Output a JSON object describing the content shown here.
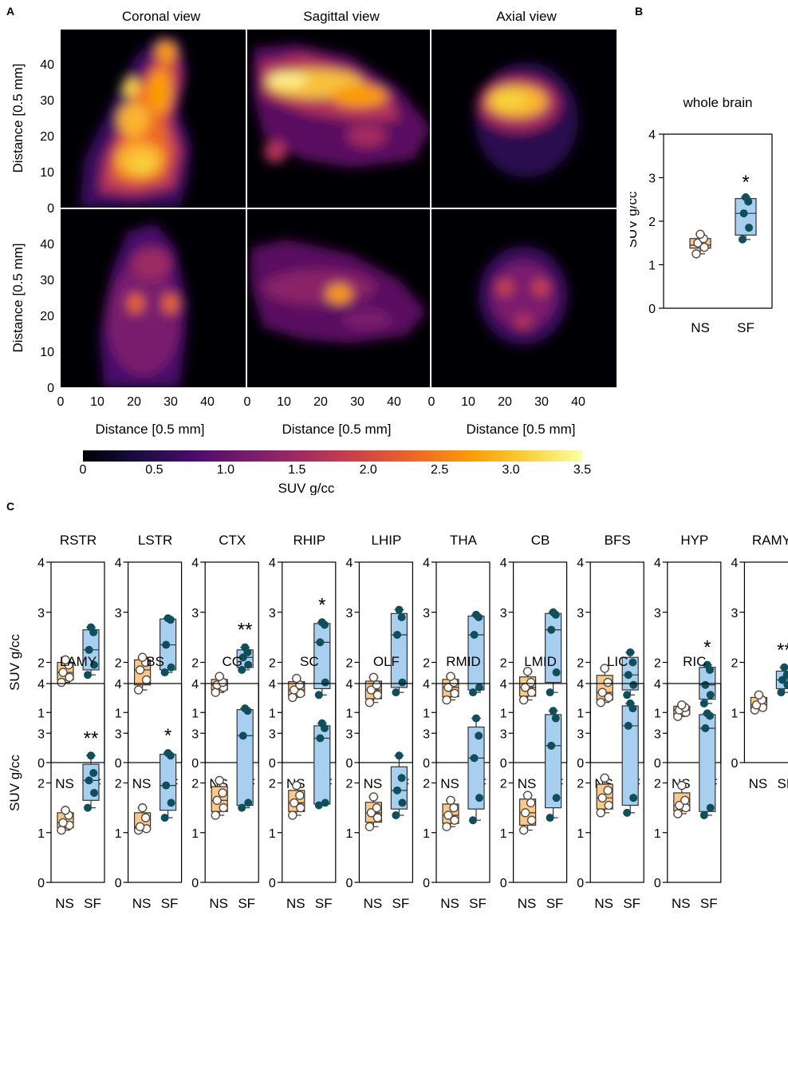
{
  "panel_labels": {
    "a": "A",
    "b": "B",
    "c": "C"
  },
  "petimages": {
    "view_titles": [
      "Coronal view",
      "Sagittal view",
      "Axial view"
    ],
    "ylabel": "Distance [0.5 mm]",
    "xlabel": "Distance [0.5 mm]",
    "yticks": [
      "0",
      "10",
      "20",
      "30",
      "40"
    ],
    "xticks": [
      "0",
      "10",
      "20",
      "30",
      "40"
    ]
  },
  "colorbar": {
    "label": "SUV g/cc",
    "ticks": [
      "0",
      "0.5",
      "1.0",
      "1.5",
      "2.0",
      "2.5",
      "3.0",
      "3.5"
    ],
    "colors": [
      "#000004",
      "#1b0c41",
      "#4a0c6b",
      "#781c6d",
      "#a52c60",
      "#cf4446",
      "#ed6925",
      "#fb9b06",
      "#f7d13d",
      "#fcffa4"
    ]
  },
  "legend_colors": {
    "ns_fill": "#f9c98b",
    "ns_edge": "#5a4a3a",
    "sf_fill": "#a8cff0",
    "sf_dot": "#0f4f5c"
  },
  "chart_data": [
    {
      "type": "boxplot",
      "title": "whole brain",
      "ylabel": "SUV g/cc",
      "ylim": [
        0,
        4
      ],
      "yticks": [
        "0",
        "1",
        "2",
        "3",
        "4"
      ],
      "categories": [
        "NS",
        "SF"
      ],
      "significance": "*",
      "series": [
        {
          "name": "NS",
          "min": 1.25,
          "q1": 1.38,
          "median": 1.45,
          "q3": 1.6,
          "max": 1.7,
          "points": [
            1.25,
            1.4,
            1.5,
            1.6,
            1.7
          ]
        },
        {
          "name": "SF",
          "min": 1.58,
          "q1": 1.68,
          "median": 2.18,
          "q3": 2.52,
          "max": 2.55,
          "points": [
            1.58,
            1.85,
            2.18,
            2.45,
            2.55
          ]
        }
      ]
    },
    {
      "type": "boxplot_small_multiples",
      "ylabel": "SUV g/cc",
      "ylim": [
        0,
        4
      ],
      "yticks": [
        "0",
        "1",
        "2",
        "3",
        "4"
      ],
      "categories": [
        "NS",
        "SF"
      ],
      "regions": [
        {
          "title": "RSTR",
          "sig": "",
          "ns": [
            1.6,
            1.7,
            1.8,
            1.95,
            2.05
          ],
          "sf": [
            1.75,
            1.95,
            2.25,
            2.6,
            2.7
          ]
        },
        {
          "title": "LSTR",
          "sig": "",
          "ns": [
            1.45,
            1.65,
            1.85,
            2.0,
            2.1
          ],
          "sf": [
            1.8,
            1.9,
            2.35,
            2.85,
            2.88
          ]
        },
        {
          "title": "CTX",
          "sig": "**",
          "ns": [
            1.4,
            1.5,
            1.55,
            1.6,
            1.72
          ],
          "sf": [
            1.85,
            1.95,
            2.1,
            2.2,
            2.3
          ]
        },
        {
          "title": "RHIP",
          "sig": "*",
          "ns": [
            1.3,
            1.38,
            1.45,
            1.55,
            1.68
          ],
          "sf": [
            1.35,
            1.6,
            2.4,
            2.75,
            2.8
          ]
        },
        {
          "title": "LHIP",
          "sig": "",
          "ns": [
            1.2,
            1.35,
            1.45,
            1.55,
            1.7
          ],
          "sf": [
            1.4,
            1.6,
            2.55,
            2.9,
            3.05
          ]
        },
        {
          "title": "THA",
          "sig": "",
          "ns": [
            1.25,
            1.38,
            1.5,
            1.6,
            1.72
          ],
          "sf": [
            1.4,
            1.5,
            2.55,
            2.9,
            2.95
          ]
        },
        {
          "title": "CB",
          "sig": "",
          "ns": [
            1.25,
            1.4,
            1.5,
            1.6,
            1.82
          ],
          "sf": [
            1.4,
            1.8,
            2.65,
            2.95,
            3.0
          ]
        },
        {
          "title": "BFS",
          "sig": "",
          "ns": [
            1.2,
            1.3,
            1.4,
            1.6,
            1.88
          ],
          "sf": [
            1.35,
            1.55,
            1.75,
            2.0,
            2.2
          ]
        },
        {
          "title": "HYP",
          "sig": "*",
          "ns": [
            0.92,
            1.0,
            1.05,
            1.1,
            1.15
          ],
          "sf": [
            1.18,
            1.35,
            1.55,
            1.85,
            1.95
          ]
        },
        {
          "title": "RAMY",
          "sig": "**",
          "ns": [
            1.05,
            1.1,
            1.15,
            1.25,
            1.35
          ],
          "sf": [
            1.4,
            1.55,
            1.65,
            1.75,
            1.9
          ]
        },
        {
          "title": "LAMY",
          "sig": "**",
          "ns": [
            1.05,
            1.15,
            1.2,
            1.35,
            1.45
          ],
          "sf": [
            1.5,
            1.8,
            2.05,
            2.2,
            2.55
          ]
        },
        {
          "title": "BS",
          "sig": "*",
          "ns": [
            1.05,
            1.08,
            1.12,
            1.3,
            1.5
          ],
          "sf": [
            1.3,
            1.6,
            1.95,
            2.55,
            2.6
          ]
        },
        {
          "title": "CG",
          "sig": "",
          "ns": [
            1.35,
            1.5,
            1.65,
            1.8,
            2.05
          ],
          "sf": [
            1.5,
            1.6,
            2.95,
            3.45,
            3.5
          ]
        },
        {
          "title": "SC",
          "sig": "",
          "ns": [
            1.35,
            1.5,
            1.6,
            1.75,
            1.95
          ],
          "sf": [
            1.55,
            1.6,
            2.9,
            3.1,
            3.2
          ]
        },
        {
          "title": "OLF",
          "sig": "",
          "ns": [
            1.12,
            1.3,
            1.4,
            1.5,
            1.72
          ],
          "sf": [
            1.35,
            1.6,
            1.85,
            2.1,
            2.55
          ]
        },
        {
          "title": "RMID",
          "sig": "",
          "ns": [
            1.12,
            1.25,
            1.35,
            1.5,
            1.65
          ],
          "sf": [
            1.25,
            1.7,
            2.5,
            2.95,
            3.3
          ]
        },
        {
          "title": "LMID",
          "sig": "",
          "ns": [
            1.05,
            1.25,
            1.4,
            1.6,
            1.75
          ],
          "sf": [
            1.3,
            1.7,
            2.75,
            3.3,
            3.45
          ]
        },
        {
          "title": "LIC",
          "sig": "",
          "ns": [
            1.4,
            1.55,
            1.7,
            1.85,
            2.1
          ],
          "sf": [
            1.4,
            1.7,
            3.15,
            3.5,
            3.6
          ]
        },
        {
          "title": "RIC",
          "sig": "",
          "ns": [
            1.38,
            1.5,
            1.55,
            1.65,
            1.95
          ],
          "sf": [
            1.35,
            1.5,
            3.1,
            3.35,
            3.4
          ]
        }
      ]
    }
  ]
}
